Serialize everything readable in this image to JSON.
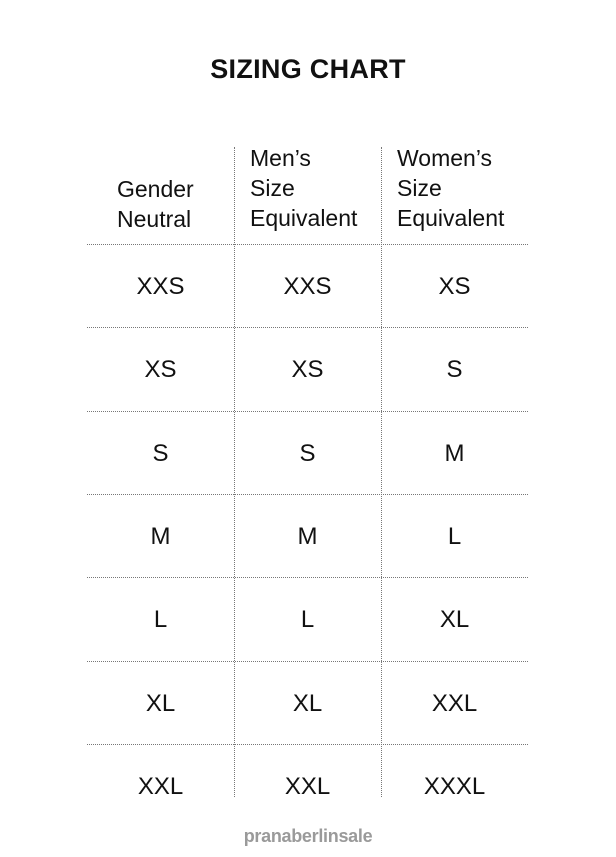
{
  "title": "SIZING CHART",
  "headers": [
    [
      "Gender",
      "Neutral"
    ],
    [
      "Men’s",
      "Size",
      "Equivalent"
    ],
    [
      "Women’s",
      "Size",
      "Equivalent"
    ]
  ],
  "rows": [
    [
      "XXS",
      "XXS",
      "XS"
    ],
    [
      "XS",
      "XS",
      "S"
    ],
    [
      "S",
      "S",
      "M"
    ],
    [
      "M",
      "M",
      "L"
    ],
    [
      "L",
      "L",
      "XL"
    ],
    [
      "XL",
      "XL",
      "XXL"
    ],
    [
      "XXL",
      "XXL",
      "XXXL"
    ]
  ],
  "watermark": "pranaberlinsale"
}
